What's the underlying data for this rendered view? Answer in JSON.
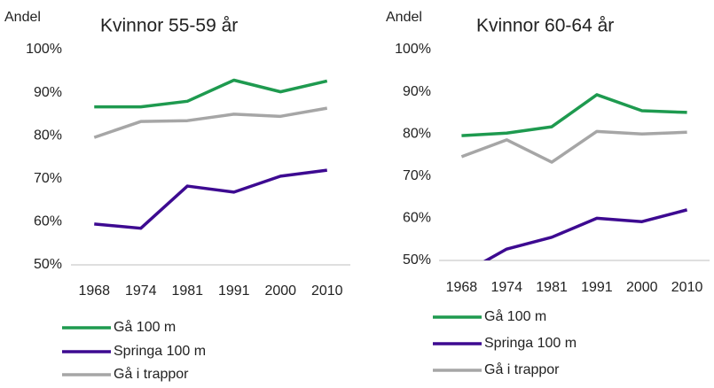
{
  "chart_data": [
    {
      "type": "line",
      "title": "Kvinnor 55-59 år",
      "y_label": "Andel",
      "categories": [
        "1968",
        "1974",
        "1981",
        "1991",
        "2000",
        "2010"
      ],
      "ylim": [
        50,
        100
      ],
      "yticks": [
        {
          "value": 50,
          "label": "50%"
        },
        {
          "value": 60,
          "label": "60%"
        },
        {
          "value": 70,
          "label": "70%"
        },
        {
          "value": 80,
          "label": "80%"
        },
        {
          "value": 90,
          "label": "90%"
        },
        {
          "value": 100,
          "label": "100%"
        }
      ],
      "series": [
        {
          "name": "Gå 100 m",
          "color": "#1e9a4f",
          "values": [
            86.7,
            86.7,
            88,
            92.9,
            90.2,
            92.7
          ]
        },
        {
          "name": "Springa 100 m",
          "color": "#3d0a91",
          "values": [
            59.5,
            58.5,
            68.3,
            66.9,
            70.6,
            72
          ]
        },
        {
          "name": "Gå i trappor",
          "color": "#a6a6a6",
          "values": [
            79.6,
            83.3,
            83.5,
            85,
            84.5,
            86.4
          ]
        }
      ]
    },
    {
      "type": "line",
      "title": "Kvinnor 60-64 år",
      "y_label": "Andel",
      "categories": [
        "1968",
        "1974",
        "1981",
        "1991",
        "2000",
        "2010"
      ],
      "ylim": [
        50,
        100
      ],
      "yticks": [
        {
          "value": 50,
          "label": "50%"
        },
        {
          "value": 60,
          "label": "60%"
        },
        {
          "value": 70,
          "label": "70%"
        },
        {
          "value": 80,
          "label": "80%"
        },
        {
          "value": 90,
          "label": "90%"
        },
        {
          "value": 100,
          "label": "100%"
        }
      ],
      "series": [
        {
          "name": "Gå 100 m",
          "color": "#1e9a4f",
          "values": [
            79.6,
            80.2,
            81.7,
            89.3,
            85.5,
            85.1
          ]
        },
        {
          "name": "Springa 100 m",
          "color": "#3d0a91",
          "values": [
            46.7,
            52.7,
            55.5,
            60,
            59.2,
            62
          ]
        },
        {
          "name": "Gå i trappor",
          "color": "#a6a6a6",
          "values": [
            74.6,
            78.6,
            73.3,
            80.6,
            80,
            80.4
          ]
        }
      ]
    }
  ]
}
